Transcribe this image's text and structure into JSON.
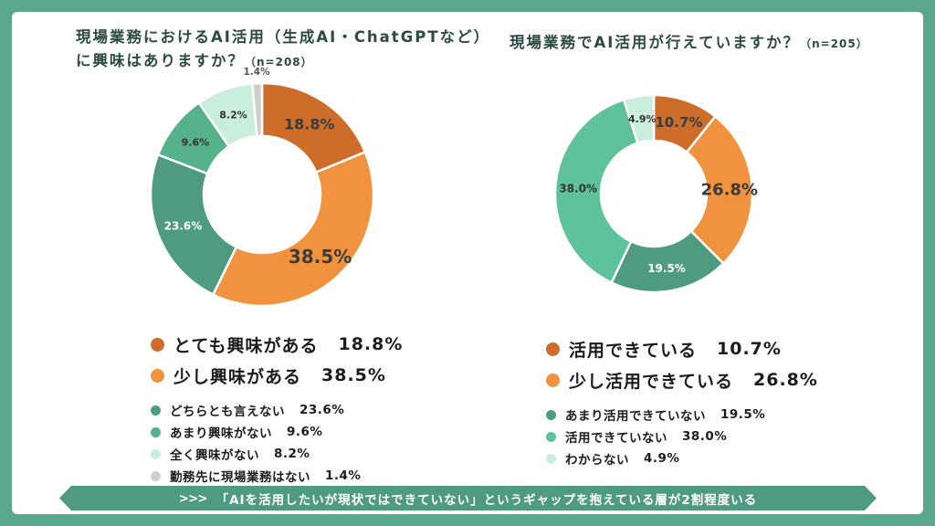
{
  "frame": {
    "bg_color": "#5AA88C",
    "panel_color": "#FFFFFF"
  },
  "chart_data": [
    {
      "type": "donut",
      "title_line1": "現場業務におけるAI活用（生成AI・ChatGPTなど）",
      "title_line2": "に興味はありますか？",
      "sample_label": "（n=208）",
      "outer_radius": 122,
      "inner_radius": 64,
      "legend_position": "below",
      "slices": [
        {
          "label": "とても興味がある",
          "value": 18.8,
          "pct_label": "18.8%",
          "color": "#CE6D29",
          "legend": "primary",
          "label_pos": "inside",
          "label_fill": "#3B3B3B",
          "label_size": 16
        },
        {
          "label": "少し興味がある",
          "value": 38.5,
          "pct_label": "38.5%",
          "color": "#F0923E",
          "legend": "primary",
          "label_pos": "inside",
          "label_fill": "#3B3B3B",
          "label_size": 20
        },
        {
          "label": "どちらとも言えない",
          "value": 23.6,
          "pct_label": "23.6%",
          "color": "#4E9B7F",
          "legend": "secondary",
          "label_pos": "inside",
          "label_fill": "#FFFFFF",
          "label_size": 12
        },
        {
          "label": "あまり興味がない",
          "value": 9.6,
          "pct_label": "9.6%",
          "color": "#55B28A",
          "legend": "secondary",
          "label_pos": "inside",
          "label_fill": "#333333",
          "label_size": 11
        },
        {
          "label": "全く興味がない",
          "value": 8.2,
          "pct_label": "8.2%",
          "color": "#C9EEDE",
          "legend": "secondary",
          "label_pos": "inside",
          "label_fill": "#333333",
          "label_size": 11
        },
        {
          "label": "勤務先に現場業務はない",
          "value": 1.4,
          "pct_label": "1.4%",
          "color": "#CFCFCF",
          "legend": "secondary",
          "label_pos": "outside",
          "label_fill": "#555555",
          "label_size": 10.5
        }
      ]
    },
    {
      "type": "donut",
      "title_line1": "現場業務でAI活用が行えていますか？",
      "title_line2": "",
      "sample_label": "（n=205）",
      "outer_radius": 108,
      "inner_radius": 58,
      "legend_position": "below",
      "slices": [
        {
          "label": "活用できている",
          "value": 10.7,
          "pct_label": "10.7%",
          "color": "#CE6D29",
          "legend": "primary",
          "label_pos": "inside",
          "label_fill": "#3B3B3B",
          "label_size": 15
        },
        {
          "label": "少し活用できている",
          "value": 26.8,
          "pct_label": "26.8%",
          "color": "#F0923E",
          "legend": "primary",
          "label_pos": "inside",
          "label_fill": "#3B3B3B",
          "label_size": 18
        },
        {
          "label": "あまり活用できていない",
          "value": 19.5,
          "pct_label": "19.5%",
          "color": "#4E9B7F",
          "legend": "secondary",
          "label_pos": "inside",
          "label_fill": "#FFFFFF",
          "label_size": 12
        },
        {
          "label": "活用できていない",
          "value": 38.0,
          "pct_label": "38.0%",
          "color": "#5EC39B",
          "legend": "secondary",
          "label_pos": "inside",
          "label_fill": "#333333",
          "label_size": 12
        },
        {
          "label": "わからない",
          "value": 4.9,
          "pct_label": "4.9%",
          "color": "#C9EEDE",
          "legend": "secondary",
          "label_pos": "inside",
          "label_fill": "#333333",
          "label_size": 11
        }
      ]
    }
  ],
  "banner": {
    "arrows": ">>>",
    "text": "「AIを活用したいが現状ではできていない」というギャップを抱えている層が2割程度いる",
    "color": "#4E9B7F"
  }
}
